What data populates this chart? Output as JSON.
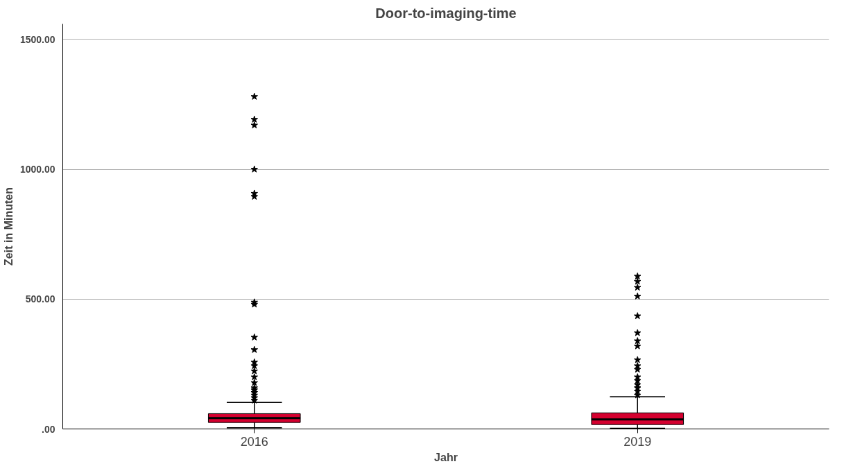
{
  "chart_data": {
    "type": "box",
    "title": "Door-to-imaging-time",
    "xlabel": "Jahr",
    "ylabel": "Zeit in Minuten",
    "categories": [
      "2016",
      "2019"
    ],
    "color": "#d4002f",
    "ylim": [
      0,
      1560
    ],
    "yticks": [
      {
        "value": 0,
        "label": ".00"
      },
      {
        "value": 500,
        "label": "500.00"
      },
      {
        "value": 1000,
        "label": "1000.00"
      },
      {
        "value": 1500,
        "label": "1500.00"
      }
    ],
    "grid": "y",
    "marker": "star",
    "boxes": [
      {
        "low": 5,
        "q1": 25,
        "median": 42,
        "q3": 59,
        "high": 102,
        "outliers": [
          1280,
          1192,
          1170,
          1000,
          907,
          895,
          488,
          480,
          353,
          305,
          257,
          243,
          223,
          200,
          178,
          158,
          150,
          140,
          130,
          120,
          110
        ]
      },
      {
        "low": 3,
        "q1": 17,
        "median": 37,
        "q3": 62,
        "high": 124,
        "outliers": [
          588,
          568,
          545,
          511,
          435,
          370,
          339,
          319,
          266,
          243,
          229,
          200,
          186,
          170,
          158,
          145,
          130
        ]
      }
    ]
  }
}
